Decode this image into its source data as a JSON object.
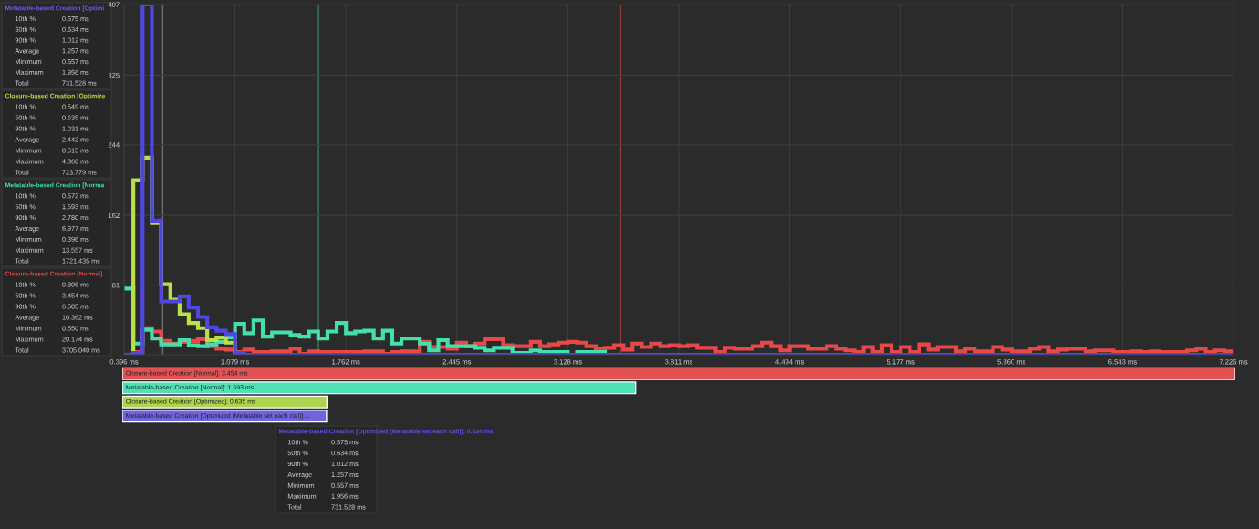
{
  "chart_data": [
    {
      "type": "other",
      "title": "Metatable-based Creation [Optimi",
      "colors": [
        "#6a5cff"
      ],
      "annotations": [
        "10th %",
        "0.575 ms",
        "50th %",
        "0.634 ms",
        "90th %",
        "1.012 ms",
        "Average",
        "1.257 ms",
        "Minimum",
        "0.557 ms",
        "Maximum",
        "1.956 ms",
        "Total",
        "731.528 ms"
      ]
    },
    {
      "type": "other",
      "title": "Closure-based Creation [Optimize",
      "colors": [
        "#b8e04a"
      ],
      "annotations": [
        "10th %",
        "0.549 ms",
        "50th %",
        "0.635 ms",
        "90th %",
        "1.031 ms",
        "Average",
        "2.442 ms",
        "Minimum",
        "0.515 ms",
        "Maximum",
        "4.368 ms",
        "Total",
        "723.779 ms"
      ]
    },
    {
      "type": "other",
      "title": "Metatable-based Creation [Norma",
      "colors": [
        "#44e0aa"
      ],
      "annotations": [
        "10th %",
        "0.572 ms",
        "50th %",
        "1.593 ms",
        "90th %",
        "2.780 ms",
        "Average",
        "6.977 ms",
        "Minimum",
        "0.396 ms",
        "Maximum",
        "13.557 ms",
        "Total",
        "1721.435 ms"
      ]
    },
    {
      "type": "other",
      "title": "Closure-based Creation [Normal]",
      "colors": [
        "#e84848"
      ],
      "annotations": [
        "10th %",
        "0.806 ms",
        "50th %",
        "3.454 ms",
        "90th %",
        "6.505 ms",
        "Average",
        "10.362 ms",
        "Minimum",
        "0.550 ms",
        "Maximum",
        "20.174 ms",
        "Total",
        "3705.040 ms"
      ]
    },
    {
      "type": "histogram",
      "grid": true,
      "bins": [
        0.396,
        0.453,
        0.51,
        0.567,
        0.624,
        0.681,
        0.738,
        0.794,
        0.851,
        0.908,
        0.965,
        1.022,
        1.079,
        1.136,
        1.193,
        1.25,
        1.307,
        1.364,
        1.421,
        1.477,
        1.534,
        1.591,
        1.648,
        1.705,
        1.762,
        1.819,
        1.876,
        1.933,
        1.99,
        2.047,
        2.104,
        2.16,
        2.217,
        2.274,
        2.331,
        2.388,
        2.445,
        2.502,
        2.559,
        2.616,
        2.673,
        2.73,
        2.787,
        2.843,
        2.9,
        2.957,
        3.014,
        3.071,
        3.128,
        3.185,
        3.242,
        3.299,
        3.356,
        3.413,
        3.47,
        3.526,
        3.583,
        3.64,
        3.697,
        3.754,
        3.811,
        3.868,
        3.925,
        3.982,
        4.039,
        4.096,
        4.153,
        4.209,
        4.266,
        4.323,
        4.38,
        4.437,
        4.494,
        4.551,
        4.608,
        4.665,
        4.722,
        4.779,
        4.836,
        4.892,
        4.949,
        5.006,
        5.063,
        5.12,
        5.177,
        5.234,
        5.291,
        5.348,
        5.405,
        5.462,
        5.519,
        5.575,
        5.632,
        5.689,
        5.746,
        5.803,
        5.86,
        5.917,
        5.974,
        6.031,
        6.088,
        6.145,
        6.202,
        6.258,
        6.315,
        6.372,
        6.429,
        6.486,
        6.543,
        6.6,
        6.657,
        6.714,
        6.771,
        6.828,
        6.885,
        6.941,
        6.998,
        7.055,
        7.112,
        7.169,
        7.226
      ],
      "series": [
        {
          "color": "#e84848",
          "values": [
            0,
            3,
            31,
            27,
            16,
            13,
            15,
            16,
            18,
            10,
            7,
            6,
            3,
            6,
            3,
            3,
            4,
            4,
            7,
            1,
            4,
            3,
            3,
            3,
            3,
            3,
            4,
            4,
            1,
            3,
            4,
            4,
            15,
            9,
            9,
            7,
            14,
            10,
            13,
            18,
            18,
            11,
            10,
            10,
            15,
            10,
            12,
            14,
            15,
            14,
            10,
            7,
            8,
            11,
            6,
            13,
            9,
            13,
            10,
            11,
            10,
            11,
            8,
            8,
            3,
            8,
            7,
            7,
            10,
            14,
            10,
            5,
            10,
            10,
            7,
            7,
            10,
            7,
            5,
            3,
            9,
            3,
            11,
            3,
            9,
            3,
            12,
            6,
            9,
            9,
            4,
            7,
            4,
            4,
            9,
            6,
            4,
            4,
            7,
            9,
            4,
            6,
            7,
            7,
            4,
            5,
            5,
            3,
            3,
            4,
            3,
            4,
            3,
            3,
            3,
            5,
            7,
            3,
            5,
            4
          ]
        },
        {
          "color": "#44e0aa",
          "values": [
            77,
            13,
            29,
            19,
            12,
            12,
            17,
            11,
            10,
            12,
            15,
            20,
            36,
            25,
            40,
            21,
            26,
            26,
            23,
            21,
            27,
            19,
            27,
            37,
            25,
            27,
            28,
            19,
            28,
            13,
            19,
            19,
            13,
            5,
            17,
            10,
            10,
            10,
            8,
            5,
            8,
            8,
            2,
            2,
            5,
            3,
            3,
            3,
            0,
            3,
            3,
            3,
            0,
            0,
            0,
            0,
            0,
            0,
            0,
            0,
            0,
            0,
            0,
            0,
            0,
            0,
            0,
            0,
            0,
            0,
            0,
            0,
            0,
            0,
            0,
            0,
            0,
            0,
            0,
            0,
            0,
            0,
            0,
            0,
            0,
            0,
            0,
            0,
            0,
            0,
            0,
            0,
            0,
            0,
            0,
            0,
            0,
            0,
            0,
            0,
            0,
            0,
            0,
            0,
            0,
            0,
            0,
            0,
            0,
            0,
            0,
            0,
            0,
            0,
            0,
            0,
            0,
            0,
            0,
            0
          ]
        },
        {
          "color": "#b8e04a",
          "values": [
            0,
            203,
            229,
            153,
            82,
            64,
            47,
            37,
            31,
            17,
            20,
            14,
            0,
            0,
            0,
            0,
            0,
            0,
            0,
            0,
            0,
            0,
            0,
            0,
            0,
            0,
            0,
            0,
            0,
            0,
            0,
            0,
            0,
            0,
            0,
            0,
            0,
            0,
            0,
            0,
            0,
            0,
            0,
            0,
            0,
            0,
            0,
            0,
            0,
            0,
            0,
            0,
            0,
            0,
            0,
            0,
            0,
            0,
            0,
            0,
            0,
            0,
            0,
            0,
            0,
            0,
            0,
            0,
            0,
            0,
            0,
            0,
            0,
            0,
            0,
            0,
            0,
            0,
            0,
            0,
            0,
            0,
            0,
            0,
            0,
            0,
            0,
            0,
            0,
            0,
            0,
            0,
            0,
            0,
            0,
            0,
            0,
            0,
            0,
            0,
            0,
            0,
            0,
            0,
            0,
            0,
            0,
            0,
            0,
            0,
            0,
            0,
            0,
            0,
            0,
            0,
            0,
            0,
            0,
            0
          ]
        },
        {
          "color": "#5046e0",
          "values": [
            0,
            2,
            407,
            156,
            62,
            62,
            68,
            55,
            44,
            32,
            28,
            24,
            2,
            0,
            0,
            0,
            0,
            0,
            0,
            0,
            0,
            0,
            0,
            0,
            0,
            0,
            0,
            0,
            0,
            0,
            0,
            0,
            0,
            0,
            0,
            0,
            0,
            0,
            0,
            0,
            0,
            0,
            0,
            0,
            0,
            0,
            0,
            0,
            0,
            0,
            0,
            0,
            0,
            0,
            0,
            0,
            0,
            0,
            0,
            0,
            0,
            0,
            0,
            0,
            0,
            0,
            0,
            0,
            0,
            0,
            0,
            0,
            0,
            0,
            0,
            0,
            0,
            0,
            0,
            0,
            0,
            0,
            0,
            0,
            0,
            0,
            0,
            0,
            0,
            0,
            0,
            0,
            0,
            0,
            0,
            0,
            0,
            0,
            0,
            0,
            0,
            0,
            0,
            0,
            0,
            0,
            0,
            0,
            0,
            0,
            0,
            0,
            0,
            0,
            0,
            0,
            0,
            0,
            0,
            0
          ]
        }
      ],
      "xlim": [
        0.396,
        7.226
      ],
      "ylim": [
        0,
        407
      ],
      "xticks": [
        {
          "value": 0.396,
          "label": "0.396 ms"
        },
        {
          "value": 1.079,
          "label": "1.079 ms"
        },
        {
          "value": 1.762,
          "label": "1.762 ms"
        },
        {
          "value": 2.445,
          "label": "2.445 ms"
        },
        {
          "value": 3.128,
          "label": "3.128 ms"
        },
        {
          "value": 3.811,
          "label": "3.811 ms"
        },
        {
          "value": 4.494,
          "label": "4.494 ms"
        },
        {
          "value": 5.177,
          "label": "5.177 ms"
        },
        {
          "value": 5.86,
          "label": "5.860 ms"
        },
        {
          "value": 6.543,
          "label": "6.543 ms"
        },
        {
          "value": 7.226,
          "label": "7.226 ms"
        }
      ],
      "yticks": [
        81,
        162,
        244,
        325,
        407
      ],
      "ref_lines": [
        {
          "axis": "x",
          "value": 0.634,
          "color": "#6e7078"
        },
        {
          "axis": "x",
          "value": 1.593,
          "color": "#3f7a62"
        },
        {
          "axis": "x",
          "value": 3.454,
          "color": "#8a3838"
        }
      ]
    },
    {
      "type": "bar",
      "orientation": "horizontal",
      "categories": [
        null,
        null,
        null,
        null
      ],
      "values": [
        3.454,
        1.593,
        0.635,
        0.634
      ],
      "colors": [
        "#e25252",
        "#4fe0b4",
        "#aed450",
        "#7064dc"
      ],
      "value_labels": [
        "Closure-based Creation [Normal]: 3.454 ms",
        "Metatable-based Creation [Normal]: 1.593 ms",
        "Closure-based Creation [Optimized]: 0.635 ms",
        "Metatable-based Creation [Optimized (Metatable set each call)]:…"
      ]
    },
    {
      "type": "other",
      "title": "Metatable-based Creation [Optimized (Metatable set each call)]: 0.634 ms",
      "colors": [
        "#5a50e8"
      ],
      "annotations": [
        "10th %",
        "0.575 ms",
        "50th %",
        "0.634 ms",
        "90th %",
        "1.012 ms",
        "Average",
        "1.257 ms",
        "Minimum",
        "0.557 ms",
        "Maximum",
        "1.956 ms",
        "Total",
        "731.528 ms"
      ]
    }
  ]
}
